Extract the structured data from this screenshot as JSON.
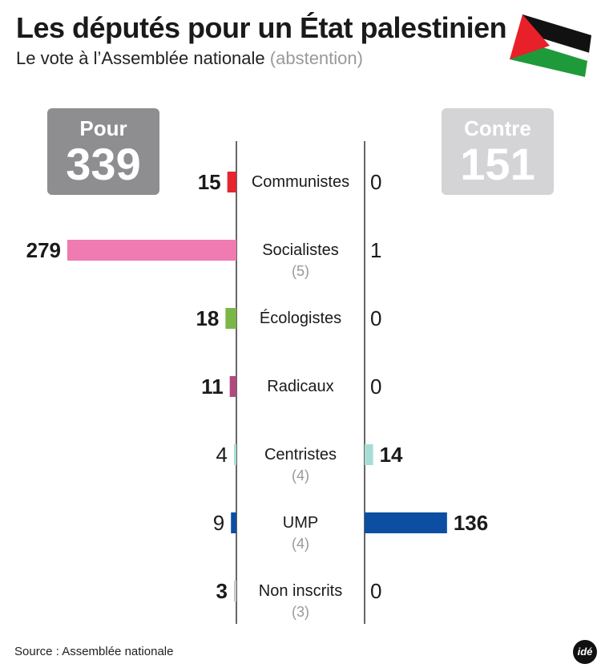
{
  "title": "Les députés pour un État palestinien",
  "subtitle": {
    "main": "Le vote à l’Assemblée nationale",
    "abstention_label": "(abstention)"
  },
  "totals": {
    "pour": {
      "label": "Pour",
      "value": "339"
    },
    "contre": {
      "label": "Contre",
      "value": "151"
    }
  },
  "source": "Source : Assemblée nationale",
  "logo": "idé",
  "colors": {
    "pour_box": "#8e8e90",
    "contre_box": "#d4d4d6",
    "flag_red": "#e8202a",
    "flag_green": "#1f9a3a",
    "flag_black": "#111111"
  },
  "chart_data": {
    "type": "bar",
    "title": "Les députés pour un État palestinien",
    "categories": [
      "Communistes",
      "Socialistes",
      "Écologistes",
      "Radicaux",
      "Centristes",
      "UMP",
      "Non inscrits"
    ],
    "series": [
      {
        "name": "Pour",
        "values": [
          15,
          279,
          18,
          11,
          4,
          9,
          3
        ],
        "colors": [
          "#e3262f",
          "#f07ab2",
          "#7ab648",
          "#b0497f",
          "#a8ddd6",
          "#0c4ea2",
          "#c8c8c8"
        ],
        "bold": [
          true,
          true,
          true,
          true,
          false,
          false,
          true
        ]
      },
      {
        "name": "Contre",
        "values": [
          0,
          1,
          0,
          0,
          14,
          136,
          0
        ],
        "colors": [
          "#e3262f",
          "#f07ab2",
          "#7ab648",
          "#b0497f",
          "#a8ddd6",
          "#0c4ea2",
          "#c8c8c8"
        ],
        "bold": [
          false,
          false,
          false,
          false,
          true,
          true,
          false
        ]
      }
    ],
    "abstentions": [
      null,
      5,
      null,
      null,
      4,
      4,
      3
    ],
    "xlim": [
      0,
      279
    ]
  }
}
